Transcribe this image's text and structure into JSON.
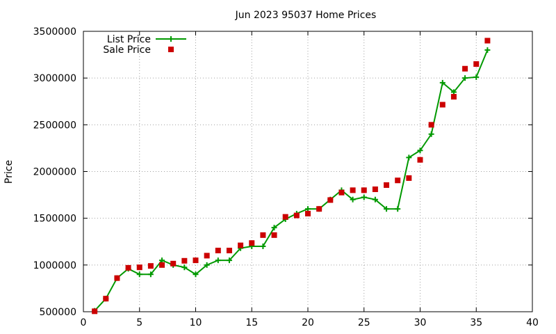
{
  "chart_data": {
    "type": "line",
    "title": "Jun 2023 95037 Home Prices",
    "xlabel": "",
    "ylabel": "Price",
    "xlim": [
      0,
      40
    ],
    "ylim": [
      500000,
      3500000
    ],
    "x_ticks": [
      0,
      5,
      10,
      15,
      20,
      25,
      30,
      35,
      40
    ],
    "y_ticks": [
      500000,
      1000000,
      1500000,
      2000000,
      2500000,
      3000000,
      3500000
    ],
    "grid": true,
    "legend_position": "top-left",
    "series": [
      {
        "name": "List Price",
        "style": "line-with-plus-markers",
        "color": "#009900",
        "x": [
          1,
          2,
          3,
          4,
          5,
          6,
          7,
          8,
          9,
          10,
          11,
          12,
          13,
          14,
          15,
          16,
          17,
          18,
          19,
          20,
          21,
          22,
          23,
          24,
          25,
          26,
          27,
          28,
          29,
          30,
          31,
          32,
          33,
          34,
          35,
          36
        ],
        "y": [
          510000,
          640000,
          860000,
          960000,
          900000,
          900000,
          1050000,
          1000000,
          975000,
          900000,
          1000000,
          1050000,
          1050000,
          1180000,
          1200000,
          1200000,
          1400000,
          1490000,
          1550000,
          1600000,
          1600000,
          1700000,
          1800000,
          1700000,
          1725000,
          1700000,
          1600000,
          1600000,
          2150000,
          2225000,
          2400000,
          2950000,
          2850000,
          3000000,
          3010000,
          3300000
        ]
      },
      {
        "name": "Sale Price",
        "style": "square-markers",
        "color": "#cc0000",
        "x": [
          1,
          2,
          3,
          4,
          5,
          6,
          7,
          8,
          9,
          10,
          11,
          12,
          13,
          14,
          15,
          16,
          17,
          18,
          19,
          20,
          21,
          22,
          23,
          24,
          25,
          26,
          27,
          28,
          29,
          30,
          31,
          32,
          33,
          34,
          35,
          36
        ],
        "y": [
          505000,
          640000,
          860000,
          970000,
          975000,
          990000,
          1000000,
          1015000,
          1045000,
          1050000,
          1100000,
          1155000,
          1155000,
          1210000,
          1235000,
          1320000,
          1320000,
          1515000,
          1530000,
          1550000,
          1600000,
          1695000,
          1775000,
          1800000,
          1800000,
          1810000,
          1855000,
          1905000,
          1930000,
          2125000,
          2500000,
          2715000,
          2800000,
          3100000,
          3150000,
          3400000
        ]
      }
    ]
  }
}
